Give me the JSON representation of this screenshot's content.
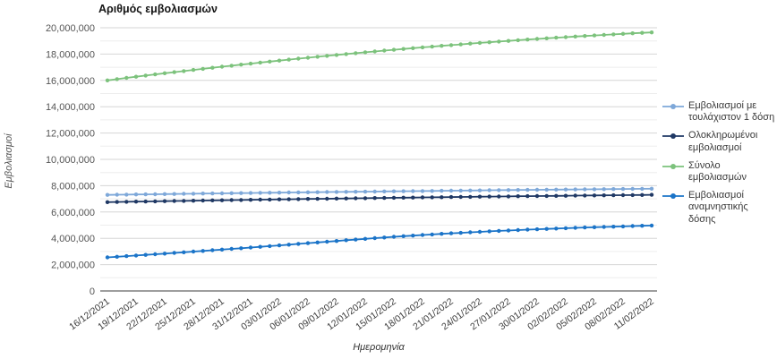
{
  "chart": {
    "title": "Αριθμός εμβολιασμών",
    "x_axis_title": "Ημερομηνία",
    "y_axis_title": "Εμβολιασμοί"
  },
  "colors": {
    "background": "#ffffff",
    "major_gridline": "#d6d6d6",
    "minor_gridline": "#ededed",
    "axis_line": "#9e9e9e",
    "y_tick_label": "#555555",
    "x_tick_label": "#3d3d3d",
    "title_text": "#151515",
    "legend_text": "#3a3a3a"
  },
  "chart_data": {
    "type": "line",
    "title": "Αριθμός εμβολιασμών",
    "xlabel": "Ημερομηνία",
    "ylabel": "Εμβολιασμοί",
    "ylim": [
      0,
      20000000
    ],
    "y_label_step": 2000000,
    "y_grid_step": 1000000,
    "grid": true,
    "markers": true,
    "legend_position": "right",
    "x_tick_every": 3,
    "x_tick_labels": [
      "16/12/2021",
      "19/12/2021",
      "22/12/2021",
      "25/12/2021",
      "28/12/2021",
      "31/12/2021",
      "03/01/2022",
      "06/01/2022",
      "09/01/2022",
      "12/01/2022",
      "15/01/2022",
      "18/01/2022",
      "21/01/2022",
      "24/01/2022",
      "27/01/2022",
      "30/01/2022",
      "02/02/2022",
      "05/02/2022",
      "08/02/2022",
      "11/02/2022"
    ],
    "x": [
      "16/12/2021",
      "17/12/2021",
      "18/12/2021",
      "19/12/2021",
      "20/12/2021",
      "21/12/2021",
      "22/12/2021",
      "23/12/2021",
      "24/12/2021",
      "25/12/2021",
      "26/12/2021",
      "27/12/2021",
      "28/12/2021",
      "29/12/2021",
      "30/12/2021",
      "31/12/2021",
      "01/01/2022",
      "02/01/2022",
      "03/01/2022",
      "04/01/2022",
      "05/01/2022",
      "06/01/2022",
      "07/01/2022",
      "08/01/2022",
      "09/01/2022",
      "10/01/2022",
      "11/01/2022",
      "12/01/2022",
      "13/01/2022",
      "14/01/2022",
      "15/01/2022",
      "16/01/2022",
      "17/01/2022",
      "18/01/2022",
      "19/01/2022",
      "20/01/2022",
      "21/01/2022",
      "22/01/2022",
      "23/01/2022",
      "24/01/2022",
      "25/01/2022",
      "26/01/2022",
      "27/01/2022",
      "28/01/2022",
      "29/01/2022",
      "30/01/2022",
      "31/01/2022",
      "01/02/2022",
      "02/02/2022",
      "03/02/2022",
      "04/02/2022",
      "05/02/2022",
      "06/02/2022",
      "07/02/2022",
      "08/02/2022",
      "09/02/2022",
      "10/02/2022",
      "11/02/2022"
    ],
    "series": [
      {
        "name": "Εμβολιασμοί με τουλάχιστον 1 δόση",
        "color": "#7EA8D9",
        "values": [
          7300000,
          7310000,
          7320000,
          7330000,
          7340000,
          7350000,
          7360000,
          7370000,
          7380000,
          7390000,
          7400000,
          7409000,
          7418000,
          7427000,
          7436000,
          7445000,
          7454000,
          7463000,
          7472000,
          7481000,
          7490000,
          7498000,
          7506000,
          7514000,
          7522000,
          7530000,
          7538000,
          7546000,
          7554000,
          7562000,
          7570000,
          7578000,
          7586000,
          7594000,
          7602000,
          7610000,
          7618000,
          7626000,
          7634000,
          7642000,
          7650000,
          7657000,
          7664000,
          7671000,
          7678000,
          7685000,
          7692000,
          7699000,
          7706000,
          7713000,
          7720000,
          7727000,
          7734000,
          7741000,
          7748000,
          7755000,
          7762000,
          7769000
        ]
      },
      {
        "name": "Ολοκληρωμένοι εμβολιασμοί",
        "color": "#1F3864",
        "values": [
          6750000,
          6762000,
          6774000,
          6786000,
          6798000,
          6810000,
          6822000,
          6834000,
          6846000,
          6858000,
          6870000,
          6881000,
          6892000,
          6903000,
          6914000,
          6925000,
          6936000,
          6947000,
          6958000,
          6969000,
          6980000,
          6990000,
          7000000,
          7010000,
          7020000,
          7030000,
          7040000,
          7050000,
          7060000,
          7070000,
          7080000,
          7089000,
          7098000,
          7107000,
          7116000,
          7125000,
          7134000,
          7143000,
          7152000,
          7161000,
          7170000,
          7178000,
          7186000,
          7194000,
          7202000,
          7210000,
          7218000,
          7226000,
          7234000,
          7242000,
          7250000,
          7258000,
          7265000,
          7273000,
          7280000,
          7288000,
          7295000,
          7303000
        ]
      },
      {
        "name": "Σύνολο εμβολιασμών",
        "color": "#7CC27C",
        "values": [
          16000000,
          16095000,
          16188000,
          16279000,
          16368000,
          16455000,
          16541000,
          16626000,
          16710000,
          16793000,
          16875000,
          16957000,
          17038000,
          17118000,
          17197000,
          17275000,
          17352000,
          17428000,
          17503000,
          17577000,
          17650000,
          17722000,
          17793000,
          17863000,
          17932000,
          18000000,
          18067000,
          18133000,
          18198000,
          18262000,
          18325000,
          18387000,
          18448000,
          18508000,
          18567000,
          18625000,
          18682000,
          18738000,
          18793000,
          18847000,
          18900000,
          18952000,
          19003000,
          19053000,
          19102000,
          19150000,
          19197000,
          19243000,
          19288000,
          19332000,
          19375000,
          19417000,
          19458000,
          19498000,
          19537000,
          19575000,
          19612000,
          19648000
        ]
      },
      {
        "name": "Εμβολιασμοί αναμνηστικής δόσης",
        "color": "#1B74C8",
        "values": [
          2550000,
          2598000,
          2646000,
          2694000,
          2742000,
          2790000,
          2840000,
          2890000,
          2940000,
          2990000,
          3040000,
          3092000,
          3144000,
          3196000,
          3248000,
          3300000,
          3355000,
          3410000,
          3465000,
          3520000,
          3575000,
          3631000,
          3687000,
          3743000,
          3799000,
          3855000,
          3907000,
          3959000,
          4011000,
          4063000,
          4115000,
          4160000,
          4205000,
          4250000,
          4295000,
          4340000,
          4378000,
          4416000,
          4454000,
          4492000,
          4530000,
          4562000,
          4594000,
          4626000,
          4658000,
          4690000,
          4716000,
          4742000,
          4768000,
          4794000,
          4820000,
          4842000,
          4864000,
          4886000,
          4908000,
          4930000,
          4952000,
          4974000
        ]
      }
    ]
  }
}
